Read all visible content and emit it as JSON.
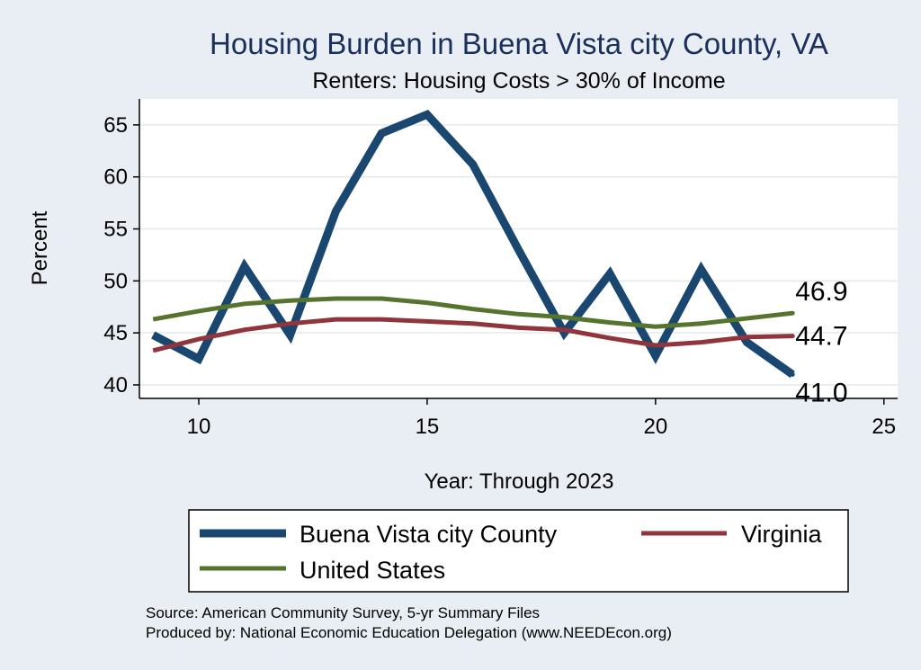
{
  "chart_data": {
    "type": "line",
    "title": "Housing Burden in Buena Vista city County, VA",
    "subtitle": "Renters: Housing Costs > 30% of Income",
    "xlabel": "Year: Through 2023",
    "ylabel": "Percent",
    "xlim": [
      8.7,
      25.3
    ],
    "ylim": [
      38.7,
      67.5
    ],
    "xticks": [
      10,
      15,
      20,
      25
    ],
    "yticks": [
      40,
      45,
      50,
      55,
      60,
      65
    ],
    "grid": true,
    "legend_position": "bottom",
    "series": [
      {
        "name": "Buena Vista city County",
        "color": "#1a476f",
        "x": [
          9,
          10,
          11,
          12,
          13,
          14,
          15,
          16,
          17,
          18,
          19,
          20,
          21,
          22,
          23
        ],
        "y": [
          44.8,
          42.5,
          51.4,
          44.8,
          56.7,
          64.2,
          66.0,
          61.2,
          53.0,
          45.0,
          50.7,
          42.8,
          51.1,
          44.1,
          41.0
        ],
        "end_label": "41.0"
      },
      {
        "name": "Virginia",
        "color": "#90353b",
        "x": [
          9,
          10,
          11,
          12,
          13,
          14,
          15,
          16,
          17,
          18,
          19,
          20,
          21,
          22,
          23
        ],
        "y": [
          43.3,
          44.4,
          45.3,
          45.9,
          46.3,
          46.3,
          46.1,
          45.9,
          45.5,
          45.3,
          44.5,
          43.8,
          44.1,
          44.6,
          44.7
        ],
        "end_label": "44.7"
      },
      {
        "name": "United States",
        "color": "#55752f",
        "x": [
          9,
          10,
          11,
          12,
          13,
          14,
          15,
          16,
          17,
          18,
          19,
          20,
          21,
          22,
          23
        ],
        "y": [
          46.3,
          47.1,
          47.8,
          48.1,
          48.3,
          48.3,
          47.9,
          47.3,
          46.8,
          46.5,
          46.0,
          45.6,
          45.9,
          46.4,
          46.9
        ],
        "end_label": "46.9"
      }
    ]
  },
  "notes": {
    "source": "Source: American Community Survey, 5-yr Summary Files",
    "produced_by": "Produced by: National Economic Education Delegation (www.NEEDEcon.org)"
  }
}
